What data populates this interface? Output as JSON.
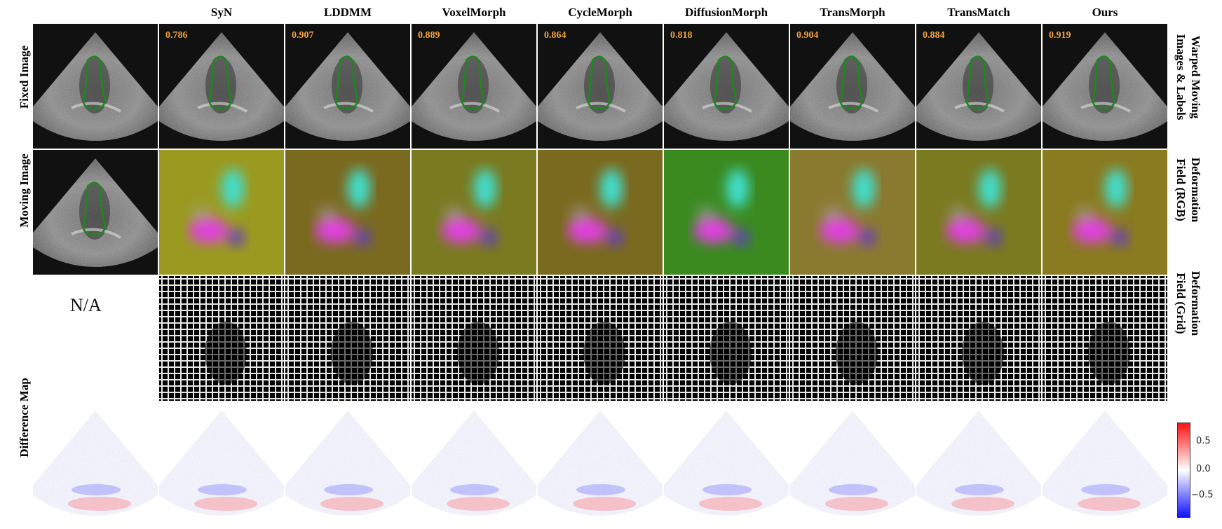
{
  "figure": {
    "columns": [
      "SyN",
      "LDDMM",
      "VoxelMorph",
      "CycleMorph",
      "DiffusionMorph",
      "TransMorph",
      "TransMatch",
      "Ours"
    ],
    "dice_scores": [
      "0.786",
      "0.907",
      "0.889",
      "0.864",
      "0.818",
      "0.904",
      "0.884",
      "0.919"
    ],
    "row_labels_left": [
      "Fixed Image",
      "Moving Image",
      "Difference Map"
    ],
    "row_labels_right": {
      "warped": [
        "Warped Moving",
        "Images & Labels"
      ],
      "rgb": [
        "Deformation",
        "Field (RGB)"
      ],
      "grid": [
        "Deformation",
        "Field (Grid)"
      ]
    },
    "na_text": "N/A",
    "colorbar": {
      "ticks": [
        "0.5",
        "0.0",
        "−0.5"
      ],
      "colors": {
        "high": "#ff1010",
        "mid": "#ffffff",
        "low": "#1010ff"
      }
    },
    "colors": {
      "dice_text": "#f2a23a",
      "contour": "#1a8a1a",
      "image_bg": "#111111"
    }
  }
}
